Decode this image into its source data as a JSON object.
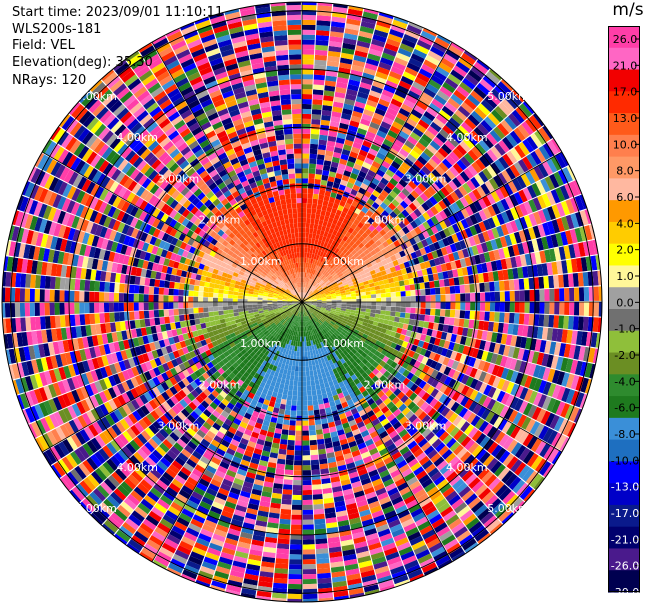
{
  "info": {
    "start_time": "Start time: 2023/09/01 11:10:11",
    "station": "WLS200s-181",
    "field": "Field: VEL",
    "elevation": "Elevation(deg): 35.30",
    "nrays": "NRays: 120"
  },
  "chart_data": {
    "type": "heatmap",
    "projection": "polar-ppi",
    "field": "VEL",
    "units": "m/s",
    "n_rays": 120,
    "range_ring_labels": [
      "1.00km",
      "2.00km",
      "3.00km",
      "4.00km",
      "5.00km"
    ],
    "range_rings_km": [
      1,
      2,
      3,
      4,
      5
    ],
    "max_range_km": 5.15,
    "wind_pattern": {
      "positive_sector": "north (velocity up to ~+17 m/s, yellow to red)",
      "negative_sector": "south (velocity down to ~-8 m/s, green to blue)",
      "zero_line": "near east-west",
      "clean_data_range_km": 2.0,
      "noise_beyond_km": 2.0
    },
    "colorbar": {
      "unit_label": "m/s",
      "tick_labels": [
        "26.0",
        "21.0",
        "17.0",
        "13.0",
        "10.0",
        "8.0",
        "6.0",
        "4.0",
        "2.0",
        "1.0",
        "0.0",
        "-1.0",
        "-2.0",
        "-4.0",
        "-6.0",
        "-8.0",
        "-10.0",
        "-13.0",
        "-17.0",
        "-21.0",
        "-26.0",
        "-30.0"
      ],
      "colors": [
        "#ff3ea8",
        "#ff66c4",
        "#f20000",
        "#ff2a00",
        "#ff5a1a",
        "#ff7f4d",
        "#ff9966",
        "#ffb8a0",
        "#ff9900",
        "#ffcc00",
        "#ffff00",
        "#fff799",
        "#a0a0a0",
        "#707070",
        "#8fbf3a",
        "#6b8e23",
        "#2e8b2e",
        "#1e7a1e",
        "#3a8fd8",
        "#1e6fc0",
        "#0000ff",
        "#0000c8",
        "#0a1a8c",
        "#00006e",
        "#4a1a8c",
        "#000050"
      ]
    }
  }
}
